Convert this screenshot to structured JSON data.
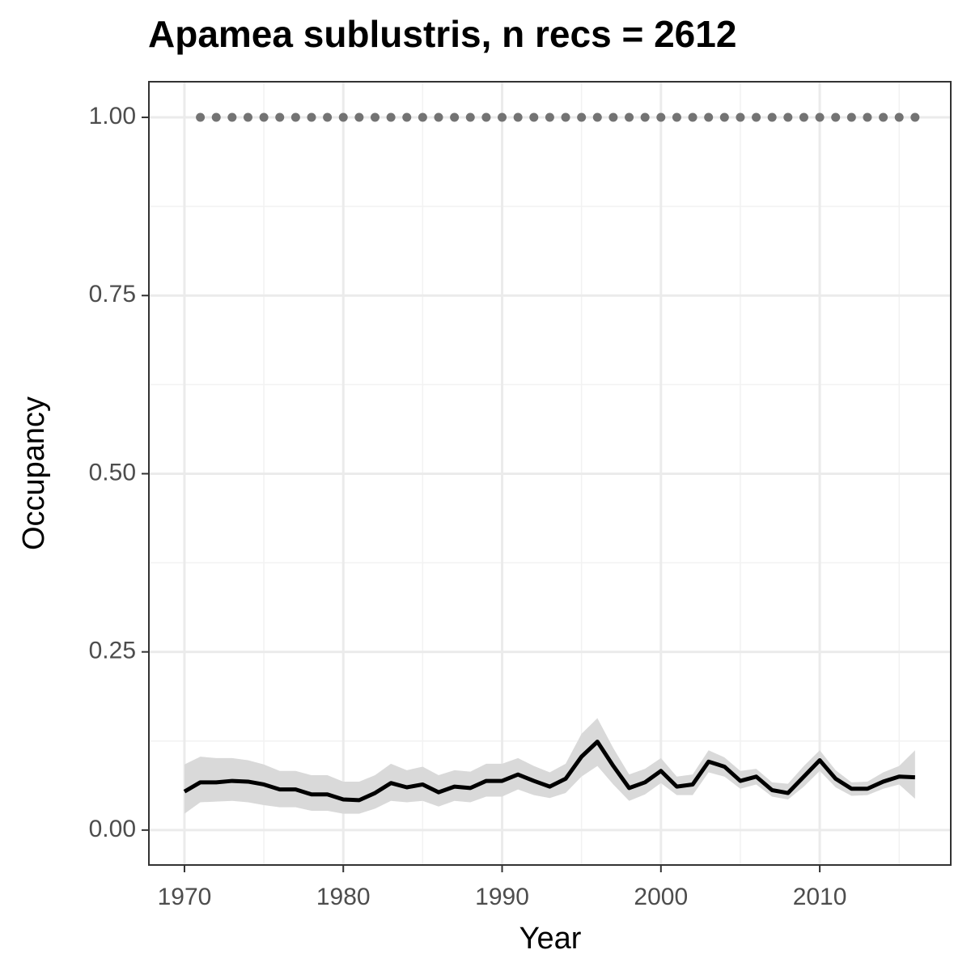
{
  "chart_data": {
    "type": "line",
    "title": "Apamea sublustris, n recs = 2612",
    "xlabel": "Year",
    "ylabel": "Occupancy",
    "x": [
      1970,
      1971,
      1972,
      1973,
      1974,
      1975,
      1976,
      1977,
      1978,
      1979,
      1980,
      1981,
      1982,
      1983,
      1984,
      1985,
      1986,
      1987,
      1988,
      1989,
      1990,
      1991,
      1992,
      1993,
      1994,
      1995,
      1996,
      1997,
      1998,
      1999,
      2000,
      2001,
      2002,
      2003,
      2004,
      2005,
      2006,
      2007,
      2008,
      2009,
      2010,
      2011,
      2012,
      2013,
      2014,
      2015,
      2016
    ],
    "series": [
      {
        "color": "#000000",
        "band_color": "#d9d9d9",
        "values": [
          0.054,
          0.067,
          0.067,
          0.069,
          0.068,
          0.064,
          0.057,
          0.057,
          0.05,
          0.05,
          0.043,
          0.042,
          0.052,
          0.066,
          0.06,
          0.064,
          0.053,
          0.061,
          0.059,
          0.069,
          0.069,
          0.078,
          0.069,
          0.061,
          0.072,
          0.103,
          0.124,
          0.09,
          0.059,
          0.067,
          0.083,
          0.061,
          0.064,
          0.096,
          0.089,
          0.069,
          0.075,
          0.056,
          0.052,
          0.075,
          0.098,
          0.072,
          0.058,
          0.058,
          0.068,
          0.075,
          0.074
        ],
        "upper": [
          0.092,
          0.103,
          0.101,
          0.101,
          0.098,
          0.092,
          0.083,
          0.083,
          0.077,
          0.077,
          0.068,
          0.068,
          0.077,
          0.093,
          0.084,
          0.089,
          0.077,
          0.084,
          0.082,
          0.093,
          0.093,
          0.101,
          0.09,
          0.081,
          0.093,
          0.135,
          0.157,
          0.115,
          0.078,
          0.086,
          0.101,
          0.075,
          0.078,
          0.112,
          0.102,
          0.083,
          0.086,
          0.067,
          0.065,
          0.09,
          0.112,
          0.084,
          0.067,
          0.068,
          0.081,
          0.09,
          0.112
        ],
        "lower": [
          0.023,
          0.039,
          0.04,
          0.041,
          0.039,
          0.035,
          0.032,
          0.032,
          0.027,
          0.027,
          0.023,
          0.023,
          0.03,
          0.041,
          0.039,
          0.041,
          0.033,
          0.041,
          0.039,
          0.047,
          0.047,
          0.057,
          0.049,
          0.045,
          0.052,
          0.075,
          0.09,
          0.064,
          0.041,
          0.05,
          0.066,
          0.049,
          0.049,
          0.081,
          0.075,
          0.058,
          0.064,
          0.047,
          0.043,
          0.061,
          0.083,
          0.06,
          0.048,
          0.049,
          0.058,
          0.064,
          0.044
        ]
      },
      {
        "style": "dots",
        "color": "#737373",
        "x": [
          1971,
          1972,
          1973,
          1974,
          1975,
          1976,
          1977,
          1978,
          1979,
          1980,
          1981,
          1982,
          1983,
          1984,
          1985,
          1986,
          1987,
          1988,
          1989,
          1990,
          1991,
          1992,
          1993,
          1994,
          1995,
          1996,
          1997,
          1998,
          1999,
          2000,
          2001,
          2002,
          2003,
          2004,
          2005,
          2006,
          2007,
          2008,
          2009,
          2010,
          2011,
          2012,
          2013,
          2014,
          2015,
          2016
        ],
        "values": [
          1,
          1,
          1,
          1,
          1,
          1,
          1,
          1,
          1,
          1,
          1,
          1,
          1,
          1,
          1,
          1,
          1,
          1,
          1,
          1,
          1,
          1,
          1,
          1,
          1,
          1,
          1,
          1,
          1,
          1,
          1,
          1,
          1,
          1,
          1,
          1,
          1,
          1,
          1,
          1,
          1,
          1,
          1,
          1,
          1,
          1
        ]
      }
    ],
    "xlim": [
      1967.76,
      2018.25
    ],
    "ylim": [
      -0.049,
      1.05
    ],
    "xticks": [
      1970,
      1980,
      1990,
      2000,
      2010
    ],
    "yticks": [
      {
        "value": 0,
        "label": "0.00"
      },
      {
        "value": 0.25,
        "label": "0.25"
      },
      {
        "value": 0.5,
        "label": "0.50"
      },
      {
        "value": 0.75,
        "label": "0.75"
      },
      {
        "value": 1,
        "label": "1.00"
      }
    ],
    "xminorticks": [
      1975,
      1985,
      1995,
      2005,
      2015
    ],
    "yminorticks": [
      0.125,
      0.375,
      0.625,
      0.875
    ],
    "grid": true
  }
}
